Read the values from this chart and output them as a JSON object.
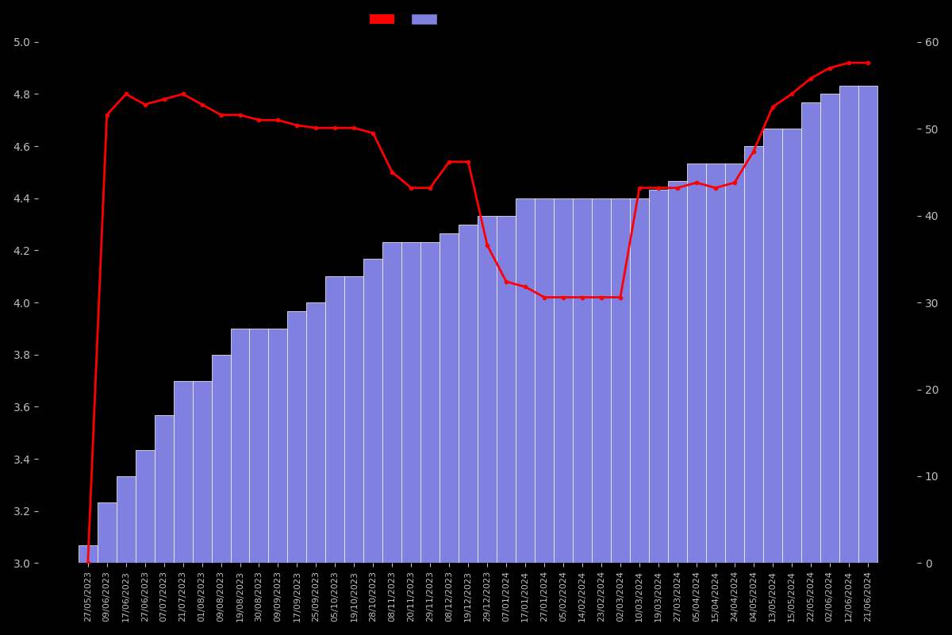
{
  "dates": [
    "27/05/2023",
    "09/06/2023",
    "17/06/2023",
    "27/06/2023",
    "07/07/2023",
    "21/07/2023",
    "01/08/2023",
    "09/08/2023",
    "19/08/2023",
    "30/08/2023",
    "09/09/2023",
    "17/09/2023",
    "25/09/2023",
    "05/10/2023",
    "19/10/2023",
    "28/10/2023",
    "08/11/2023",
    "20/11/2023",
    "29/11/2023",
    "08/12/2023",
    "19/12/2023",
    "29/12/2023",
    "07/01/2024",
    "17/01/2024",
    "27/01/2024",
    "05/02/2024",
    "14/02/2024",
    "23/02/2024",
    "02/03/2024",
    "10/03/2024",
    "19/03/2024",
    "27/03/2024",
    "05/04/2024",
    "15/04/2024",
    "24/04/2024",
    "04/05/2024",
    "13/05/2024",
    "15/05/2024",
    "22/05/2024",
    "02/06/2024",
    "12/06/2024",
    "21/06/2024"
  ],
  "bar_counts": [
    2,
    7,
    10,
    13,
    17,
    21,
    21,
    24,
    27,
    27,
    27,
    29,
    30,
    33,
    33,
    35,
    37,
    37,
    37,
    38,
    39,
    40,
    40,
    42,
    42,
    42,
    42,
    42,
    42,
    42,
    43,
    44,
    46,
    46,
    46,
    48,
    50,
    50,
    53,
    54,
    55,
    55
  ],
  "line_values": [
    3.0,
    4.72,
    4.8,
    4.76,
    4.78,
    4.8,
    4.76,
    4.72,
    4.72,
    4.7,
    4.7,
    4.68,
    4.67,
    4.67,
    4.67,
    4.65,
    4.5,
    4.44,
    4.44,
    4.54,
    4.54,
    4.22,
    4.08,
    4.06,
    4.02,
    4.02,
    4.02,
    4.02,
    4.02,
    4.44,
    4.44,
    4.44,
    4.46,
    4.44,
    4.46,
    4.58,
    4.75,
    4.8,
    4.86,
    4.9,
    4.92,
    4.92
  ],
  "bar_color": "#8080e0",
  "bar_edge_color": "#ffffff",
  "line_color": "#ff0000",
  "background_color": "#000000",
  "text_color": "#c0c0c0",
  "ylim_left": [
    3.0,
    5.0
  ],
  "ylim_right": [
    0,
    60
  ],
  "yticks_left": [
    3.0,
    3.2,
    3.4,
    3.6,
    3.8,
    4.0,
    4.2,
    4.4,
    4.6,
    4.8,
    5.0
  ],
  "yticks_right": [
    0,
    10,
    20,
    30,
    40,
    50,
    60
  ],
  "legend_patch1_color": "#ff0000",
  "legend_patch2_color": "#8080e0",
  "line_width": 2.0,
  "marker_size": 3,
  "marker_color": "#ff0000"
}
